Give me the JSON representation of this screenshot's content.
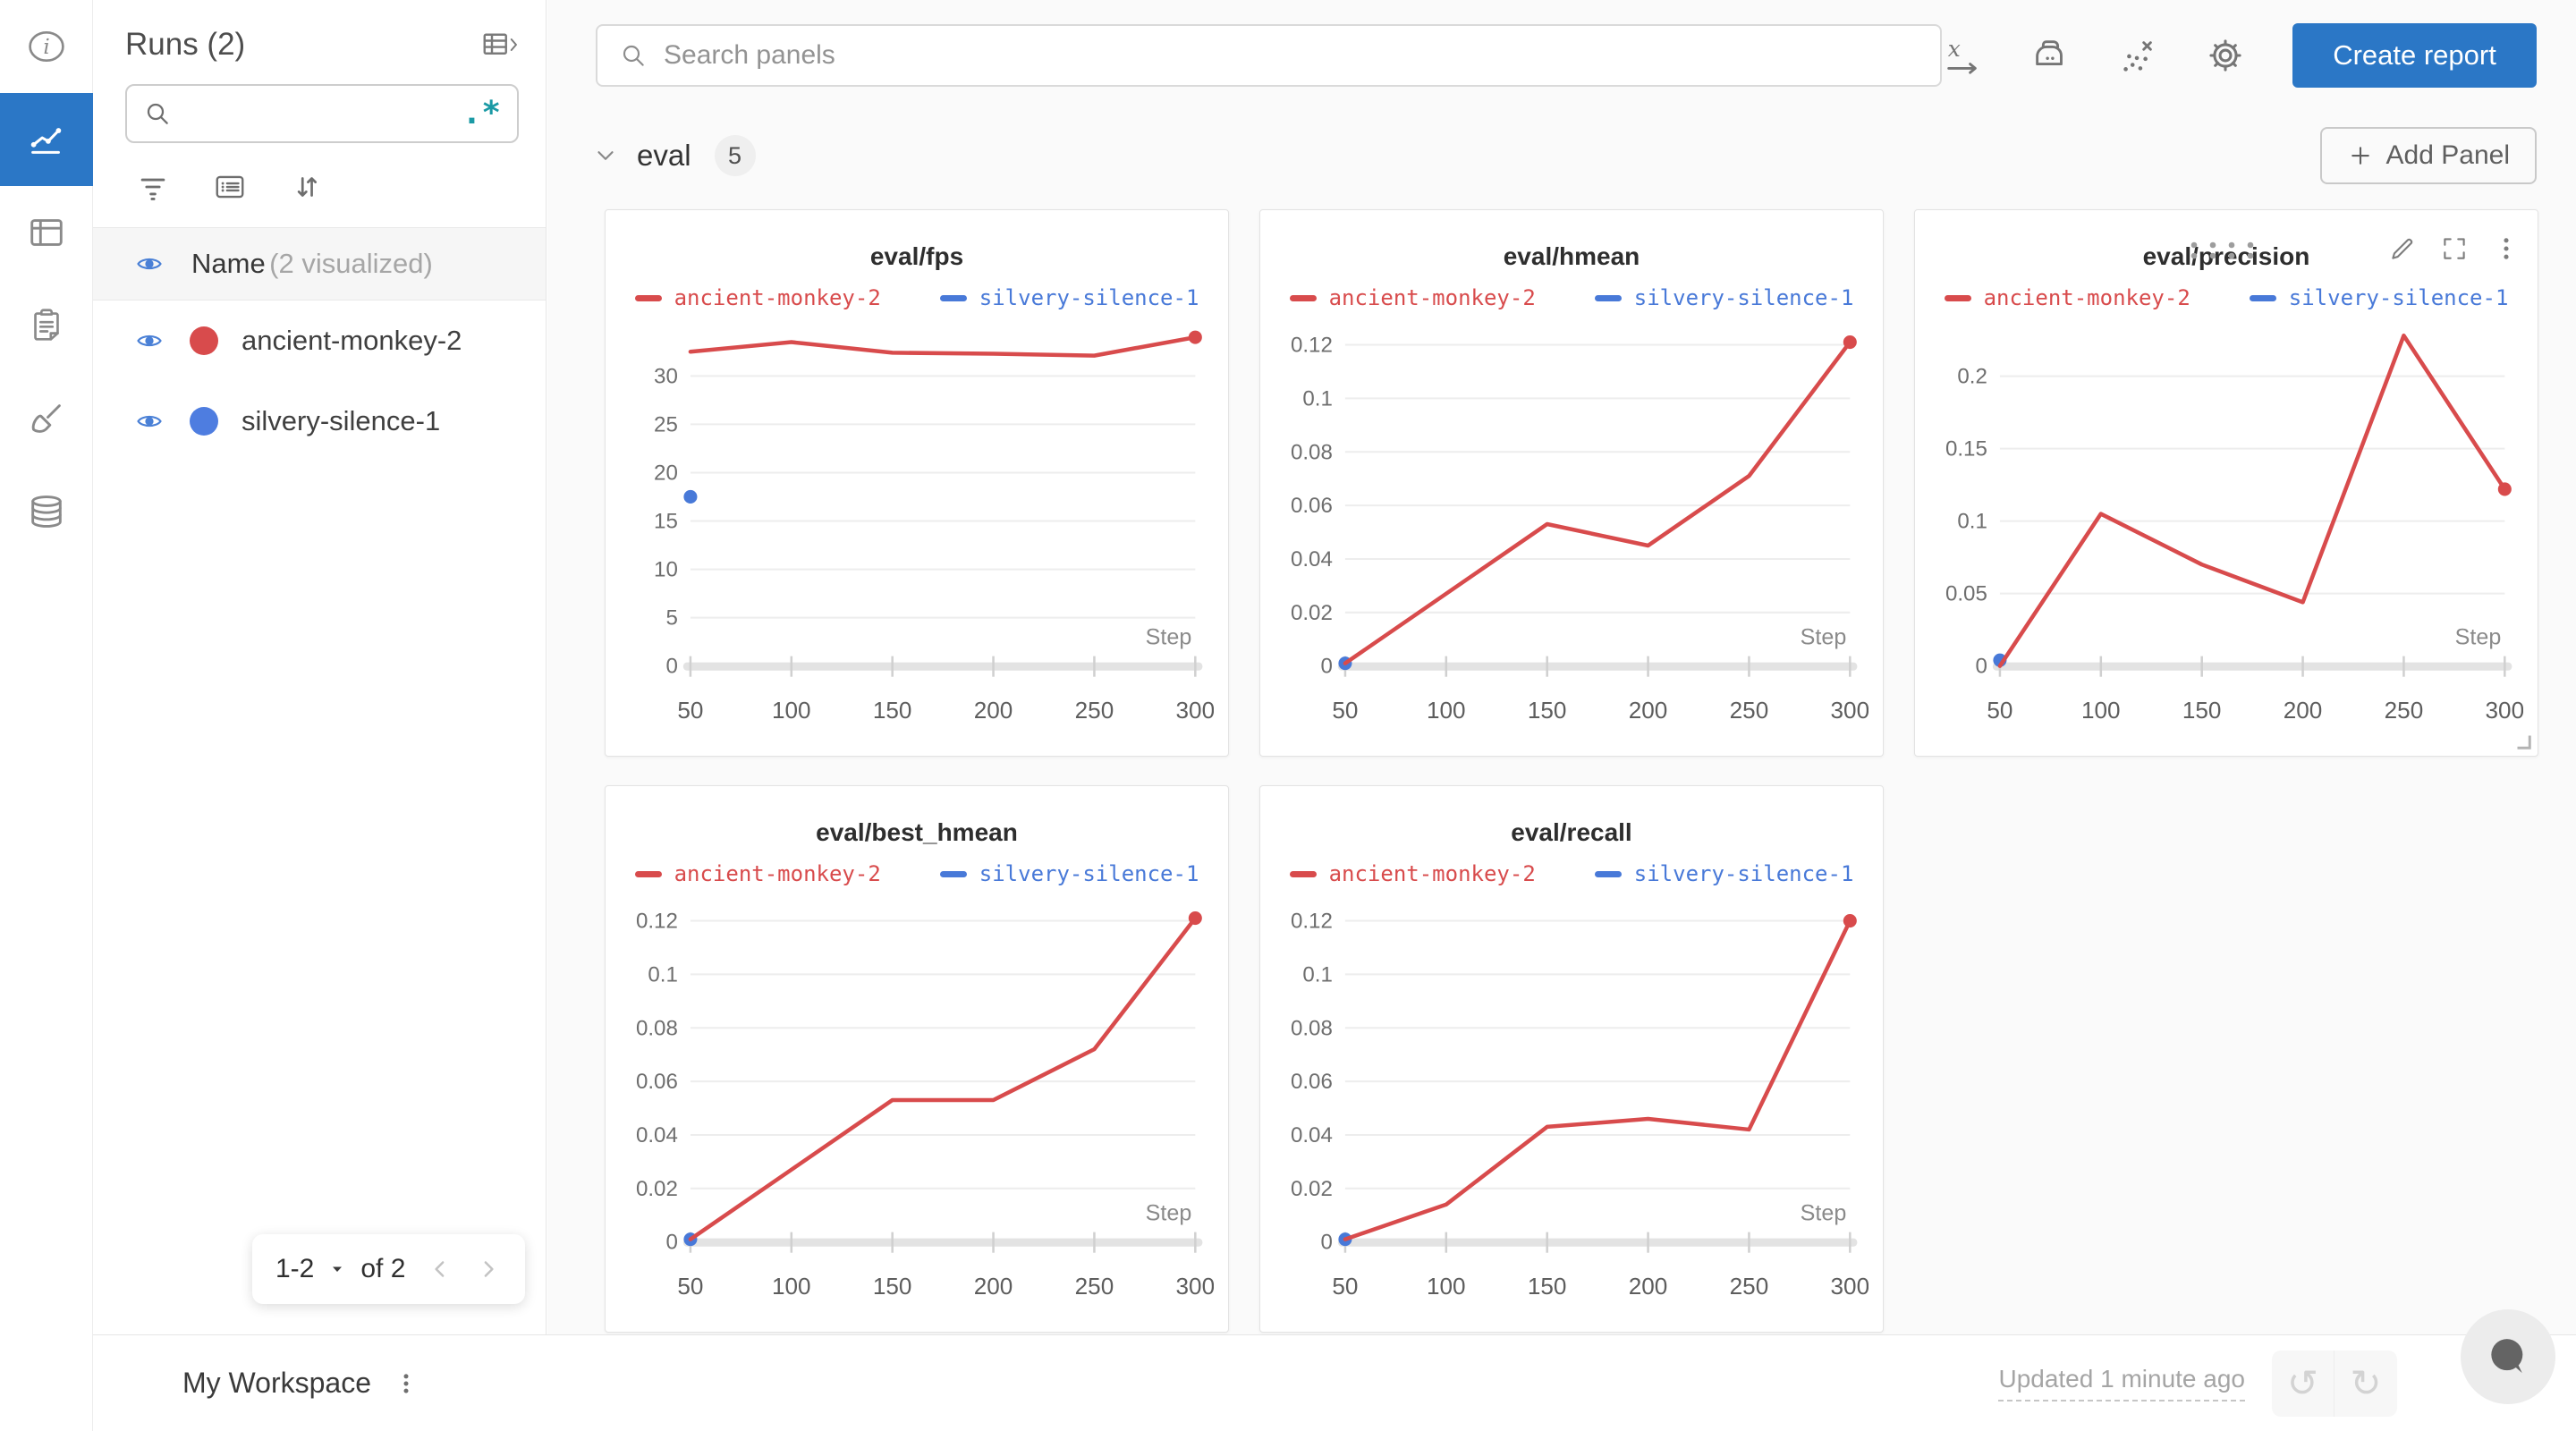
{
  "colors": {
    "accent_blue": "#2b77c6",
    "run_red": "#d84b4c",
    "run_blue": "#4879d8",
    "regex_teal": "#1b9aa5"
  },
  "rail": {
    "items": [
      {
        "icon": "info-icon",
        "selected": false
      },
      {
        "icon": "line-chart-icon",
        "selected": true
      },
      {
        "icon": "table-icon",
        "selected": false
      },
      {
        "icon": "clipboard-icon",
        "selected": false
      },
      {
        "icon": "broom-icon",
        "selected": false
      },
      {
        "icon": "database-icon",
        "selected": false
      }
    ]
  },
  "runs_panel": {
    "title": "Runs (2)",
    "search_value": "",
    "regex_label": ".*",
    "name_header": "Name",
    "name_header_sub": "(2 visualized)",
    "runs": [
      {
        "name": "ancient-monkey-2",
        "color": "#d84b4c"
      },
      {
        "name": "silvery-silence-1",
        "color": "#4e7de0"
      }
    ],
    "pagination": {
      "range": "1-2",
      "of_label": "of 2"
    }
  },
  "topbar": {
    "search_placeholder": "Search panels",
    "create_report_label": "Create report"
  },
  "section": {
    "name": "eval",
    "panel_count": "5",
    "add_panel_label": "Add Panel"
  },
  "footer": {
    "workspace_label": "My Workspace",
    "updated_label": "Updated 1 minute ago",
    "undo_glyph": "↺",
    "redo_glyph": "↻"
  },
  "chart_data": [
    {
      "type": "line",
      "title": "eval/fps",
      "xlabel": "Step",
      "x": [
        50,
        100,
        150,
        200,
        250,
        300
      ],
      "xticks": [
        50,
        100,
        150,
        200,
        250,
        300
      ],
      "xlim": [
        50,
        300
      ],
      "ylim": [
        0,
        35.3
      ],
      "yticks": [
        0,
        5,
        10,
        15,
        20,
        25,
        30
      ],
      "ytick_labels": [
        "0",
        "5",
        "10",
        "15",
        "20",
        "25",
        "30"
      ],
      "grid": true,
      "legend_position": "top",
      "hover_controls": false,
      "series": [
        {
          "name": "ancient-monkey-2",
          "color": "#d84b4c",
          "y": [
            32.5,
            33.5,
            32.4,
            32.3,
            32.1,
            34.0
          ]
        },
        {
          "name": "silvery-silence-1",
          "color": "#4879d8",
          "y": [
            17.5
          ]
        }
      ]
    },
    {
      "type": "line",
      "title": "eval/hmean",
      "xlabel": "Step",
      "x": [
        50,
        100,
        150,
        200,
        250,
        300
      ],
      "xticks": [
        50,
        100,
        150,
        200,
        250,
        300
      ],
      "xlim": [
        50,
        300
      ],
      "ylim": [
        0,
        0.1275
      ],
      "yticks": [
        0,
        0.02,
        0.04,
        0.06,
        0.08,
        0.1,
        0.12
      ],
      "ytick_labels": [
        "0",
        "0.02",
        "0.04",
        "0.06",
        "0.08",
        "0.1",
        "0.12"
      ],
      "grid": true,
      "legend_position": "top",
      "hover_controls": false,
      "series": [
        {
          "name": "ancient-monkey-2",
          "color": "#d84b4c",
          "y": [
            0.001,
            0.027,
            0.053,
            0.045,
            0.071,
            0.121
          ]
        },
        {
          "name": "silvery-silence-1",
          "color": "#4879d8",
          "y": [
            0.001
          ]
        }
      ]
    },
    {
      "type": "line",
      "title": "eval/precision",
      "xlabel": "Step",
      "x": [
        50,
        100,
        150,
        200,
        250,
        300
      ],
      "xticks": [
        50,
        100,
        150,
        200,
        250,
        300
      ],
      "xlim": [
        50,
        300
      ],
      "ylim": [
        0,
        0.2355
      ],
      "yticks": [
        0,
        0.05,
        0.1,
        0.15,
        0.2
      ],
      "ytick_labels": [
        "0",
        "0.05",
        "0.1",
        "0.15",
        "0.2"
      ],
      "grid": true,
      "legend_position": "top",
      "hover_controls": true,
      "series": [
        {
          "name": "ancient-monkey-2",
          "color": "#d84b4c",
          "y": [
            0.0,
            0.105,
            0.07,
            0.044,
            0.228,
            0.122
          ]
        },
        {
          "name": "silvery-silence-1",
          "color": "#4879d8",
          "y": [
            0.004
          ]
        }
      ]
    },
    {
      "type": "line",
      "title": "eval/best_hmean",
      "xlabel": "Step",
      "x": [
        50,
        100,
        150,
        200,
        250,
        300
      ],
      "xticks": [
        50,
        100,
        150,
        200,
        250,
        300
      ],
      "xlim": [
        50,
        300
      ],
      "ylim": [
        0,
        0.1275
      ],
      "yticks": [
        0,
        0.02,
        0.04,
        0.06,
        0.08,
        0.1,
        0.12
      ],
      "ytick_labels": [
        "0",
        "0.02",
        "0.04",
        "0.06",
        "0.08",
        "0.1",
        "0.12"
      ],
      "grid": true,
      "legend_position": "top",
      "hover_controls": false,
      "series": [
        {
          "name": "ancient-monkey-2",
          "color": "#d84b4c",
          "y": [
            0.001,
            0.027,
            0.053,
            0.053,
            0.072,
            0.121
          ]
        },
        {
          "name": "silvery-silence-1",
          "color": "#4879d8",
          "y": [
            0.001
          ]
        }
      ]
    },
    {
      "type": "line",
      "title": "eval/recall",
      "xlabel": "Step",
      "x": [
        50,
        100,
        150,
        200,
        250,
        300
      ],
      "xticks": [
        50,
        100,
        150,
        200,
        250,
        300
      ],
      "xlim": [
        50,
        300
      ],
      "ylim": [
        0,
        0.1275
      ],
      "yticks": [
        0,
        0.02,
        0.04,
        0.06,
        0.08,
        0.1,
        0.12
      ],
      "ytick_labels": [
        "0",
        "0.02",
        "0.04",
        "0.06",
        "0.08",
        "0.1",
        "0.12"
      ],
      "grid": true,
      "legend_position": "top",
      "hover_controls": false,
      "series": [
        {
          "name": "ancient-monkey-2",
          "color": "#d84b4c",
          "y": [
            0.001,
            0.014,
            0.043,
            0.046,
            0.042,
            0.12
          ]
        },
        {
          "name": "silvery-silence-1",
          "color": "#4879d8",
          "y": [
            0.001
          ]
        }
      ]
    }
  ]
}
